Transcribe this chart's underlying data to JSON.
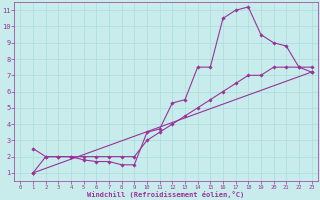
{
  "xlabel": "Windchill (Refroidissement éolien,°C)",
  "background_color": "#c8ecec",
  "line_color": "#993399",
  "grid_color": "#aadddd",
  "xlim": [
    -0.5,
    23.5
  ],
  "ylim": [
    0.5,
    11.5
  ],
  "xticks": [
    0,
    1,
    2,
    3,
    4,
    5,
    6,
    7,
    8,
    9,
    10,
    11,
    12,
    13,
    14,
    15,
    16,
    17,
    18,
    19,
    20,
    21,
    22,
    23
  ],
  "yticks": [
    1,
    2,
    3,
    4,
    5,
    6,
    7,
    8,
    9,
    10,
    11
  ],
  "line1_x": [
    1,
    2,
    3,
    4,
    5,
    6,
    7,
    8,
    9,
    10,
    11,
    12,
    13,
    14,
    15,
    16,
    17,
    18,
    19,
    20,
    21,
    22,
    23
  ],
  "line1_y": [
    1.0,
    2.0,
    2.0,
    2.0,
    1.8,
    1.7,
    1.7,
    1.5,
    1.5,
    3.5,
    3.7,
    5.3,
    5.5,
    7.5,
    7.5,
    10.5,
    11.0,
    11.2,
    9.5,
    9.0,
    8.8,
    7.5,
    7.2
  ],
  "line2_x": [
    1,
    2,
    3,
    4,
    5,
    6,
    7,
    8,
    9,
    10,
    11,
    12,
    13,
    14,
    15,
    16,
    17,
    18,
    19,
    20,
    21,
    22,
    23
  ],
  "line2_y": [
    2.5,
    2.0,
    2.0,
    2.0,
    2.0,
    2.0,
    2.0,
    2.0,
    2.0,
    3.0,
    3.5,
    4.0,
    4.5,
    5.0,
    5.5,
    6.0,
    6.5,
    7.0,
    7.0,
    7.5,
    7.5,
    7.5,
    7.5
  ],
  "line3_x": [
    1,
    23
  ],
  "line3_y": [
    1.0,
    7.2
  ]
}
